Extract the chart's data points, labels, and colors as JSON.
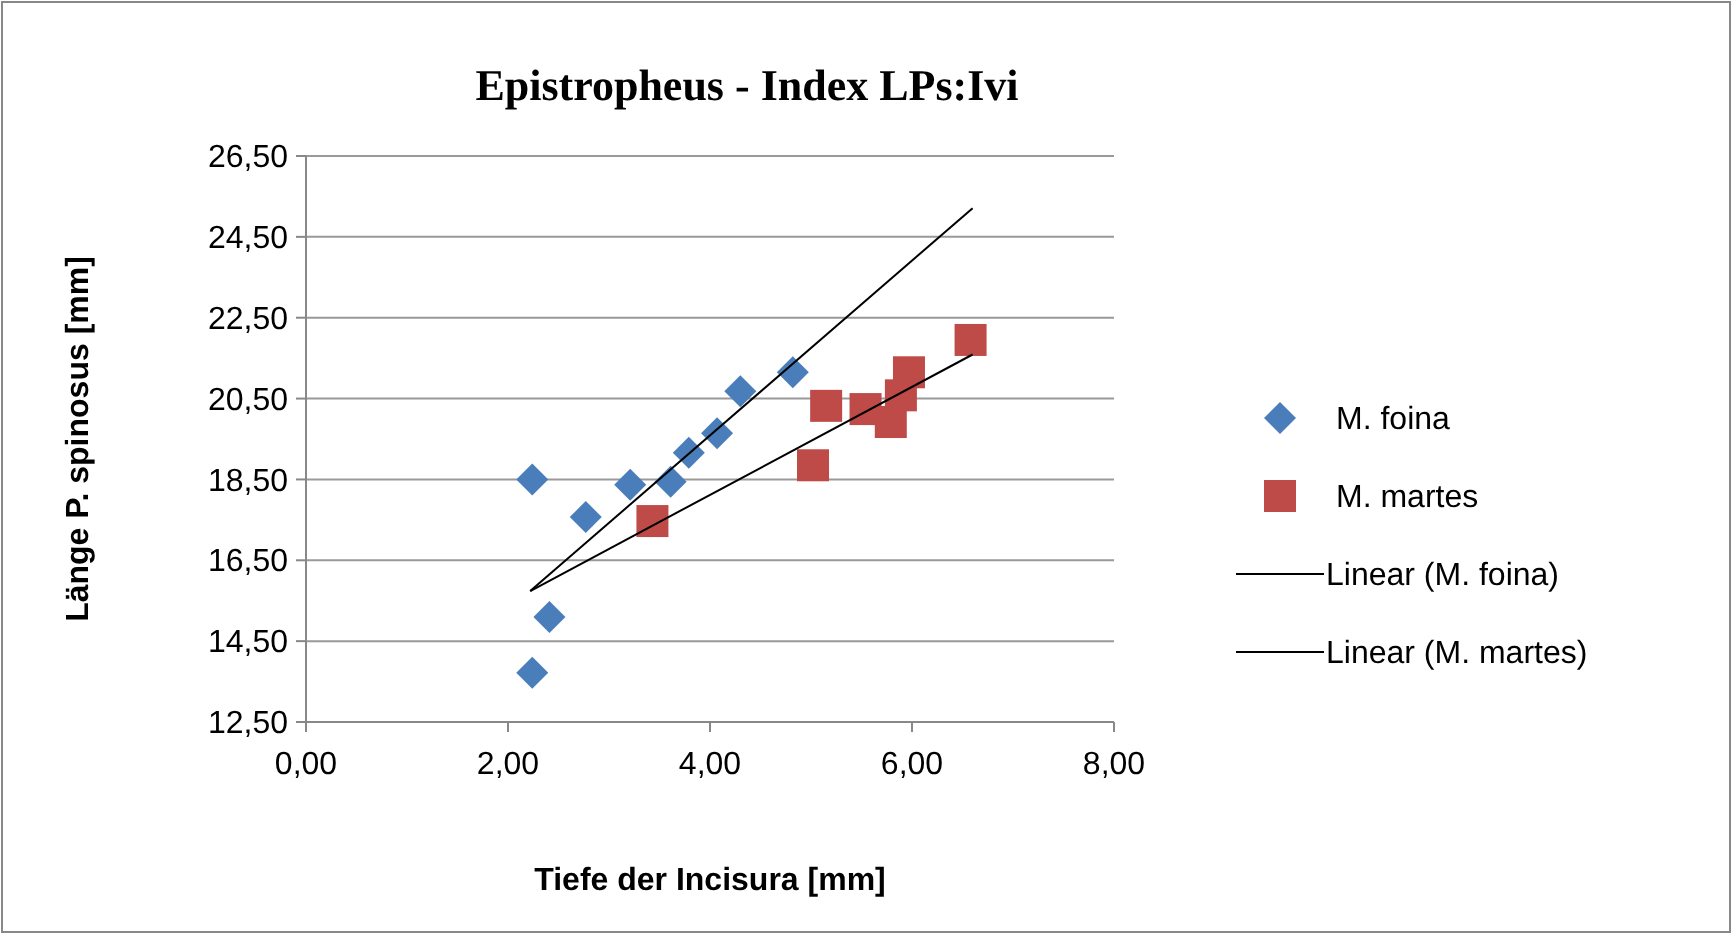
{
  "chart_data": {
    "type": "scatter",
    "title": "Epistropheus - Index LPs:Ivi",
    "xlabel": "Tiefe der Incisura [mm]",
    "ylabel": "Länge P. spinosus [mm]",
    "xlim": [
      0,
      8
    ],
    "xticks": [
      {
        "value": 0,
        "label": "0,00"
      },
      {
        "value": 2,
        "label": "2,00"
      },
      {
        "value": 4,
        "label": "4,00"
      },
      {
        "value": 6,
        "label": "6,00"
      },
      {
        "value": 8,
        "label": "8,00"
      }
    ],
    "ylim": [
      12.5,
      26.5
    ],
    "yticks": [
      {
        "value": 12.5,
        "label": "12,50"
      },
      {
        "value": 14.5,
        "label": "14,50"
      },
      {
        "value": 16.5,
        "label": "16,50"
      },
      {
        "value": 18.5,
        "label": "18,50"
      },
      {
        "value": 20.5,
        "label": "20,50"
      },
      {
        "value": 22.5,
        "label": "22,50"
      },
      {
        "value": 24.5,
        "label": "24,50"
      },
      {
        "value": 26.5,
        "label": "26,50"
      }
    ],
    "grid": "y",
    "legend": "right",
    "series": [
      {
        "name": "M. foina",
        "marker": "diamond",
        "color": "#4a7ebb",
        "x": [
          2.24,
          2.77,
          3.21,
          3.61,
          3.79,
          4.07,
          4.3,
          4.82,
          2.41,
          2.24
        ],
        "values": [
          18.5,
          17.57,
          18.37,
          18.44,
          19.16,
          19.64,
          20.68,
          21.15,
          15.1,
          13.72
        ]
      },
      {
        "name": "M. martes",
        "marker": "square",
        "color": "#be4b48",
        "x": [
          3.43,
          5.02,
          5.15,
          5.54,
          5.79,
          5.89,
          5.97,
          6.58
        ],
        "values": [
          17.47,
          18.85,
          20.32,
          20.24,
          19.92,
          20.58,
          21.15,
          21.95
        ]
      },
      {
        "name": "Linear (M. foina)",
        "type": "line",
        "marker": "none",
        "color": "#000000",
        "x": [
          2.22,
          6.6
        ],
        "values": [
          15.74,
          25.21
        ]
      },
      {
        "name": "Linear (M. martes)",
        "type": "line",
        "marker": "none",
        "color": "#000000",
        "x": [
          2.22,
          6.6
        ],
        "values": [
          15.74,
          21.59
        ]
      }
    ]
  }
}
